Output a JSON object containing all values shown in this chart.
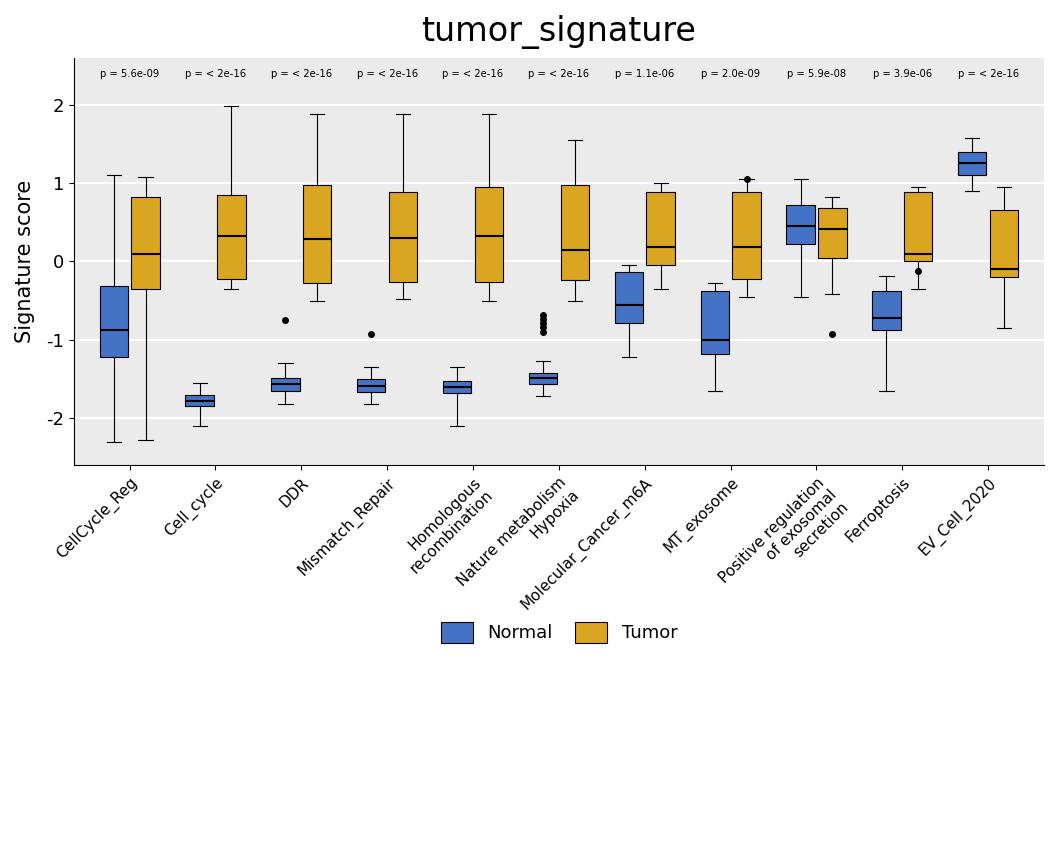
{
  "title": "tumor_signature",
  "ylabel": "Signature score",
  "categories": [
    "CellCycle_Reg",
    "Cell_cycle",
    "DDR",
    "Mismatch_Repair",
    "Homologous\nrecombination",
    "Nature metabolism\nHypoxia",
    "Molecular_Cancer_m6A",
    "MT_exosome",
    "Positive regulation\nof exosomal\nsecretion",
    "Ferroptosis",
    "EV_Cell_2020"
  ],
  "pvalues": [
    "p = 5.6e-09",
    "p = < 2e-16",
    "p = < 2e-16",
    "p = < 2e-16",
    "p = < 2e-16",
    "p = < 2e-16",
    "p = 1.1e-06",
    "p = 2.0e-09",
    "p = 5.9e-08",
    "p = 3.9e-06",
    "p = < 2e-16"
  ],
  "normal_color": "#4472C4",
  "tumor_color": "#DAA520",
  "background_color": "#EBEBEB",
  "grid_color": "#FFFFFF",
  "ylim": [
    -2.6,
    2.6
  ],
  "yticks": [
    -2,
    -1,
    0,
    1,
    2
  ],
  "normal_boxes": [
    {
      "whislo": -2.3,
      "q1": -1.22,
      "med": -0.88,
      "q3": -0.32,
      "whishi": 1.1,
      "fliers": []
    },
    {
      "whislo": -2.1,
      "q1": -1.85,
      "med": -1.78,
      "q3": -1.7,
      "whishi": -1.55,
      "fliers": []
    },
    {
      "whislo": -1.82,
      "q1": -1.65,
      "med": -1.57,
      "q3": -1.49,
      "whishi": -1.3,
      "fliers": [
        -0.75
      ]
    },
    {
      "whislo": -1.82,
      "q1": -1.66,
      "med": -1.59,
      "q3": -1.5,
      "whishi": -1.35,
      "fliers": [
        -0.92
      ]
    },
    {
      "whislo": -2.1,
      "q1": -1.68,
      "med": -1.6,
      "q3": -1.52,
      "whishi": -1.35,
      "fliers": []
    },
    {
      "whislo": -1.72,
      "q1": -1.57,
      "med": -1.49,
      "q3": -1.42,
      "whishi": -1.27,
      "fliers": [
        -0.9,
        -0.84,
        -0.79,
        -0.73,
        -0.68
      ]
    },
    {
      "whislo": -1.22,
      "q1": -0.78,
      "med": -0.55,
      "q3": -0.13,
      "whishi": -0.05,
      "fliers": []
    },
    {
      "whislo": -1.65,
      "q1": -1.18,
      "med": -1.0,
      "q3": -0.38,
      "whishi": -0.28,
      "fliers": []
    },
    {
      "whislo": -0.45,
      "q1": 0.22,
      "med": 0.45,
      "q3": 0.72,
      "whishi": 1.05,
      "fliers": []
    },
    {
      "whislo": -1.65,
      "q1": -0.88,
      "med": -0.72,
      "q3": -0.38,
      "whishi": -0.18,
      "fliers": []
    },
    {
      "whislo": 0.9,
      "q1": 1.1,
      "med": 1.25,
      "q3": 1.4,
      "whishi": 1.58,
      "fliers": []
    }
  ],
  "tumor_boxes": [
    {
      "whislo": -2.28,
      "q1": -0.35,
      "med": 0.09,
      "q3": 0.82,
      "whishi": 1.08,
      "fliers": []
    },
    {
      "whislo": -0.35,
      "q1": -0.22,
      "med": 0.32,
      "q3": 0.85,
      "whishi": 1.98,
      "fliers": []
    },
    {
      "whislo": -0.5,
      "q1": -0.28,
      "med": 0.28,
      "q3": 0.97,
      "whishi": 1.88,
      "fliers": []
    },
    {
      "whislo": -0.48,
      "q1": -0.26,
      "med": 0.3,
      "q3": 0.88,
      "whishi": 1.88,
      "fliers": []
    },
    {
      "whislo": -0.5,
      "q1": -0.26,
      "med": 0.32,
      "q3": 0.95,
      "whishi": 1.88,
      "fliers": []
    },
    {
      "whislo": -0.5,
      "q1": -0.24,
      "med": 0.15,
      "q3": 0.98,
      "whishi": 1.55,
      "fliers": []
    },
    {
      "whislo": -0.35,
      "q1": -0.05,
      "med": 0.18,
      "q3": 0.88,
      "whishi": 1.0,
      "fliers": []
    },
    {
      "whislo": -0.45,
      "q1": -0.22,
      "med": 0.18,
      "q3": 0.88,
      "whishi": 1.05,
      "fliers": [
        1.05
      ]
    },
    {
      "whislo": -0.42,
      "q1": 0.05,
      "med": 0.42,
      "q3": 0.68,
      "whishi": 0.82,
      "fliers": [
        -0.92
      ]
    },
    {
      "whislo": -0.35,
      "q1": 0.0,
      "med": 0.09,
      "q3": 0.88,
      "whishi": 0.95,
      "fliers": [
        -0.12
      ]
    },
    {
      "whislo": -0.85,
      "q1": -0.2,
      "med": -0.1,
      "q3": 0.65,
      "whishi": 0.95,
      "fliers": []
    }
  ]
}
